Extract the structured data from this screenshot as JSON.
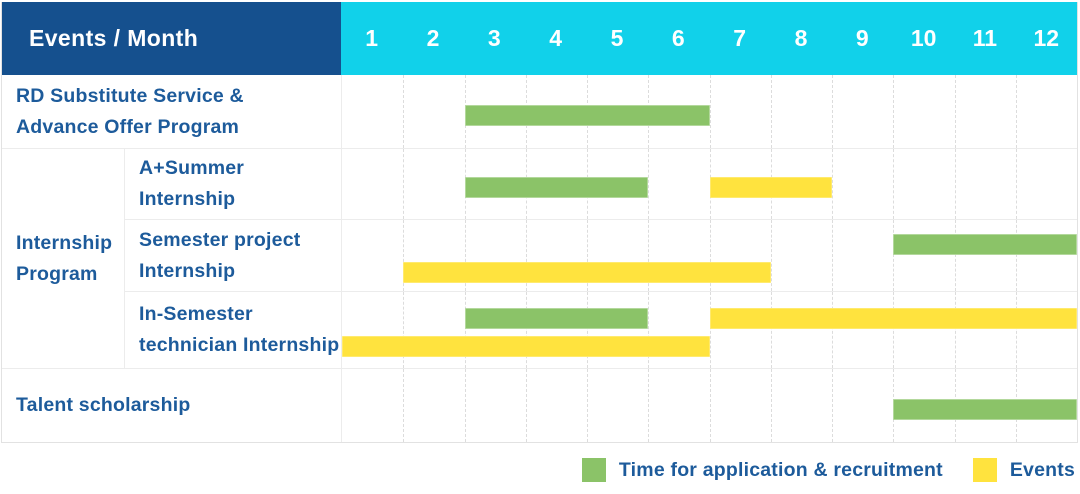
{
  "chart_data": {
    "type": "bar",
    "subtype": "gantt",
    "title": "Events / Month",
    "months": [
      "1",
      "2",
      "3",
      "4",
      "5",
      "6",
      "7",
      "8",
      "9",
      "10",
      "11",
      "12"
    ],
    "x_range": [
      1,
      12
    ],
    "row_group": {
      "label": "Internship\nProgram",
      "covers_rows": [
        1,
        2,
        3
      ]
    },
    "rows": [
      {
        "id": "rd-substitute-service",
        "label": "RD Substitute Service &\nAdvance Offer Program",
        "bars": [
          {
            "kind": "recruitment",
            "start_month": 3,
            "end_month": 6,
            "lane": "center"
          }
        ]
      },
      {
        "id": "a-plus-summer-internship",
        "label": "A+Summer\nInternship",
        "bars": [
          {
            "kind": "recruitment",
            "start_month": 3,
            "end_month": 5,
            "lane": "center"
          },
          {
            "kind": "event",
            "start_month": 7,
            "end_month": 8,
            "lane": "center"
          }
        ]
      },
      {
        "id": "semester-project-internship",
        "label": "Semester project\nInternship",
        "bars": [
          {
            "kind": "recruitment",
            "start_month": 10,
            "end_month": 12,
            "lane": "upper"
          },
          {
            "kind": "event",
            "start_month": 2,
            "end_month": 7,
            "lane": "lower"
          }
        ]
      },
      {
        "id": "in-semester-technician-internship",
        "label": "In-Semester\ntechnician Internship",
        "bars": [
          {
            "kind": "recruitment",
            "start_month": 3,
            "end_month": 5,
            "lane": "upper"
          },
          {
            "kind": "event",
            "start_month": 7,
            "end_month": 12,
            "lane": "upper"
          },
          {
            "kind": "event",
            "start_month": 1,
            "end_month": 6,
            "lane": "lower"
          }
        ]
      },
      {
        "id": "talent-scholarship",
        "label": "Talent scholarship",
        "bars": [
          {
            "kind": "recruitment",
            "start_month": 10,
            "end_month": 12,
            "lane": "center"
          }
        ]
      }
    ],
    "legend": [
      {
        "kind": "recruitment",
        "label": "Time for application & recruitment",
        "color": "#8BC368"
      },
      {
        "kind": "event",
        "label": "Events",
        "color": "#FFE33E"
      }
    ],
    "colors": {
      "header_bg": "#15508E",
      "months_bg": "#11D1EA",
      "recruitment": "#8BC368",
      "event": "#FFE33E",
      "label_text": "#1D5B9B",
      "grid_line": "#ececec",
      "grid_dash": "#dcdcdc",
      "table_border": "#e2e2e2"
    },
    "legend_position": "bottom-right",
    "grid": "dashed-vertical-month-lines"
  }
}
